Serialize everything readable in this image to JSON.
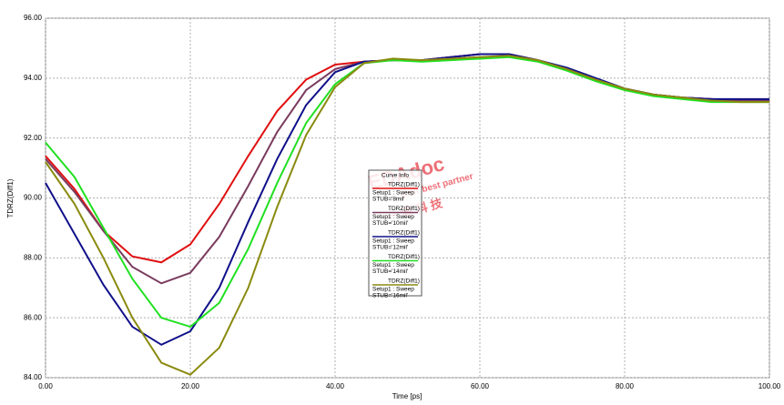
{
  "chart_data": {
    "type": "line",
    "xlabel": "Time [ps]",
    "ylabel": "TDRZ(Diff1)",
    "xlim": [
      0,
      100
    ],
    "ylim": [
      84,
      96
    ],
    "xticks": [
      {
        "value": 0,
        "label": "0.00"
      },
      {
        "value": 20,
        "label": "20.00"
      },
      {
        "value": 40,
        "label": "40.00"
      },
      {
        "value": 60,
        "label": "60.00"
      },
      {
        "value": 80,
        "label": "80.00"
      },
      {
        "value": 100,
        "label": "100.00"
      }
    ],
    "yticks": [
      {
        "value": 84,
        "label": "84.00"
      },
      {
        "value": 86,
        "label": "86.00"
      },
      {
        "value": 88,
        "label": "88.00"
      },
      {
        "value": 90,
        "label": "90.00"
      },
      {
        "value": 92,
        "label": "92.00"
      },
      {
        "value": 94,
        "label": "94.00"
      },
      {
        "value": 96,
        "label": "96.00"
      }
    ],
    "grid": true,
    "legend": {
      "title": "Curve Info",
      "trace": "TDRZ(Diff1)",
      "setup": "Setup1 : Sweep"
    },
    "watermark": [
      "EDAdoc",
      "your best partner",
      "一 博 科 技"
    ],
    "x": [
      0,
      4,
      8,
      12,
      16,
      20,
      24,
      28,
      32,
      36,
      40,
      44,
      48,
      52,
      56,
      60,
      64,
      68,
      72,
      76,
      80,
      84,
      88,
      92,
      96,
      100
    ],
    "series": [
      {
        "name": "STUB='8mil'",
        "color": "#e01010",
        "values": [
          91.4,
          90.3,
          88.9,
          88.05,
          87.85,
          88.45,
          89.8,
          91.4,
          92.9,
          93.95,
          94.45,
          94.55,
          94.6,
          94.6,
          94.7,
          94.8,
          94.8,
          94.6,
          94.3,
          93.95,
          93.65,
          93.45,
          93.35,
          93.3,
          93.25,
          93.25
        ]
      },
      {
        "name": "STUB='10mil'",
        "color": "#7a3b5e",
        "values": [
          91.3,
          90.2,
          88.9,
          87.7,
          87.15,
          87.5,
          88.7,
          90.4,
          92.2,
          93.6,
          94.3,
          94.55,
          94.6,
          94.6,
          94.7,
          94.8,
          94.8,
          94.6,
          94.3,
          93.95,
          93.65,
          93.45,
          93.35,
          93.3,
          93.25,
          93.25
        ]
      },
      {
        "name": "STUB='12mil'",
        "color": "#10108a",
        "values": [
          90.5,
          88.8,
          87.1,
          85.7,
          85.1,
          85.55,
          87.0,
          89.2,
          91.3,
          93.1,
          94.2,
          94.55,
          94.6,
          94.6,
          94.7,
          94.8,
          94.8,
          94.6,
          94.35,
          94.0,
          93.65,
          93.45,
          93.35,
          93.3,
          93.3,
          93.3
        ]
      },
      {
        "name": "STUB='14mil'",
        "color": "#20e020",
        "values": [
          91.85,
          90.7,
          89.0,
          87.3,
          86.0,
          85.7,
          86.5,
          88.3,
          90.5,
          92.5,
          93.8,
          94.5,
          94.6,
          94.55,
          94.6,
          94.65,
          94.7,
          94.55,
          94.25,
          93.9,
          93.6,
          93.4,
          93.3,
          93.2,
          93.2,
          93.2
        ]
      },
      {
        "name": "STUB='16mil'",
        "color": "#8a8a10",
        "values": [
          91.2,
          89.8,
          88.0,
          86.0,
          84.5,
          84.1,
          85.0,
          87.0,
          89.7,
          92.1,
          93.7,
          94.5,
          94.65,
          94.6,
          94.65,
          94.7,
          94.75,
          94.6,
          94.3,
          93.95,
          93.65,
          93.45,
          93.35,
          93.25,
          93.2,
          93.2
        ]
      }
    ]
  }
}
